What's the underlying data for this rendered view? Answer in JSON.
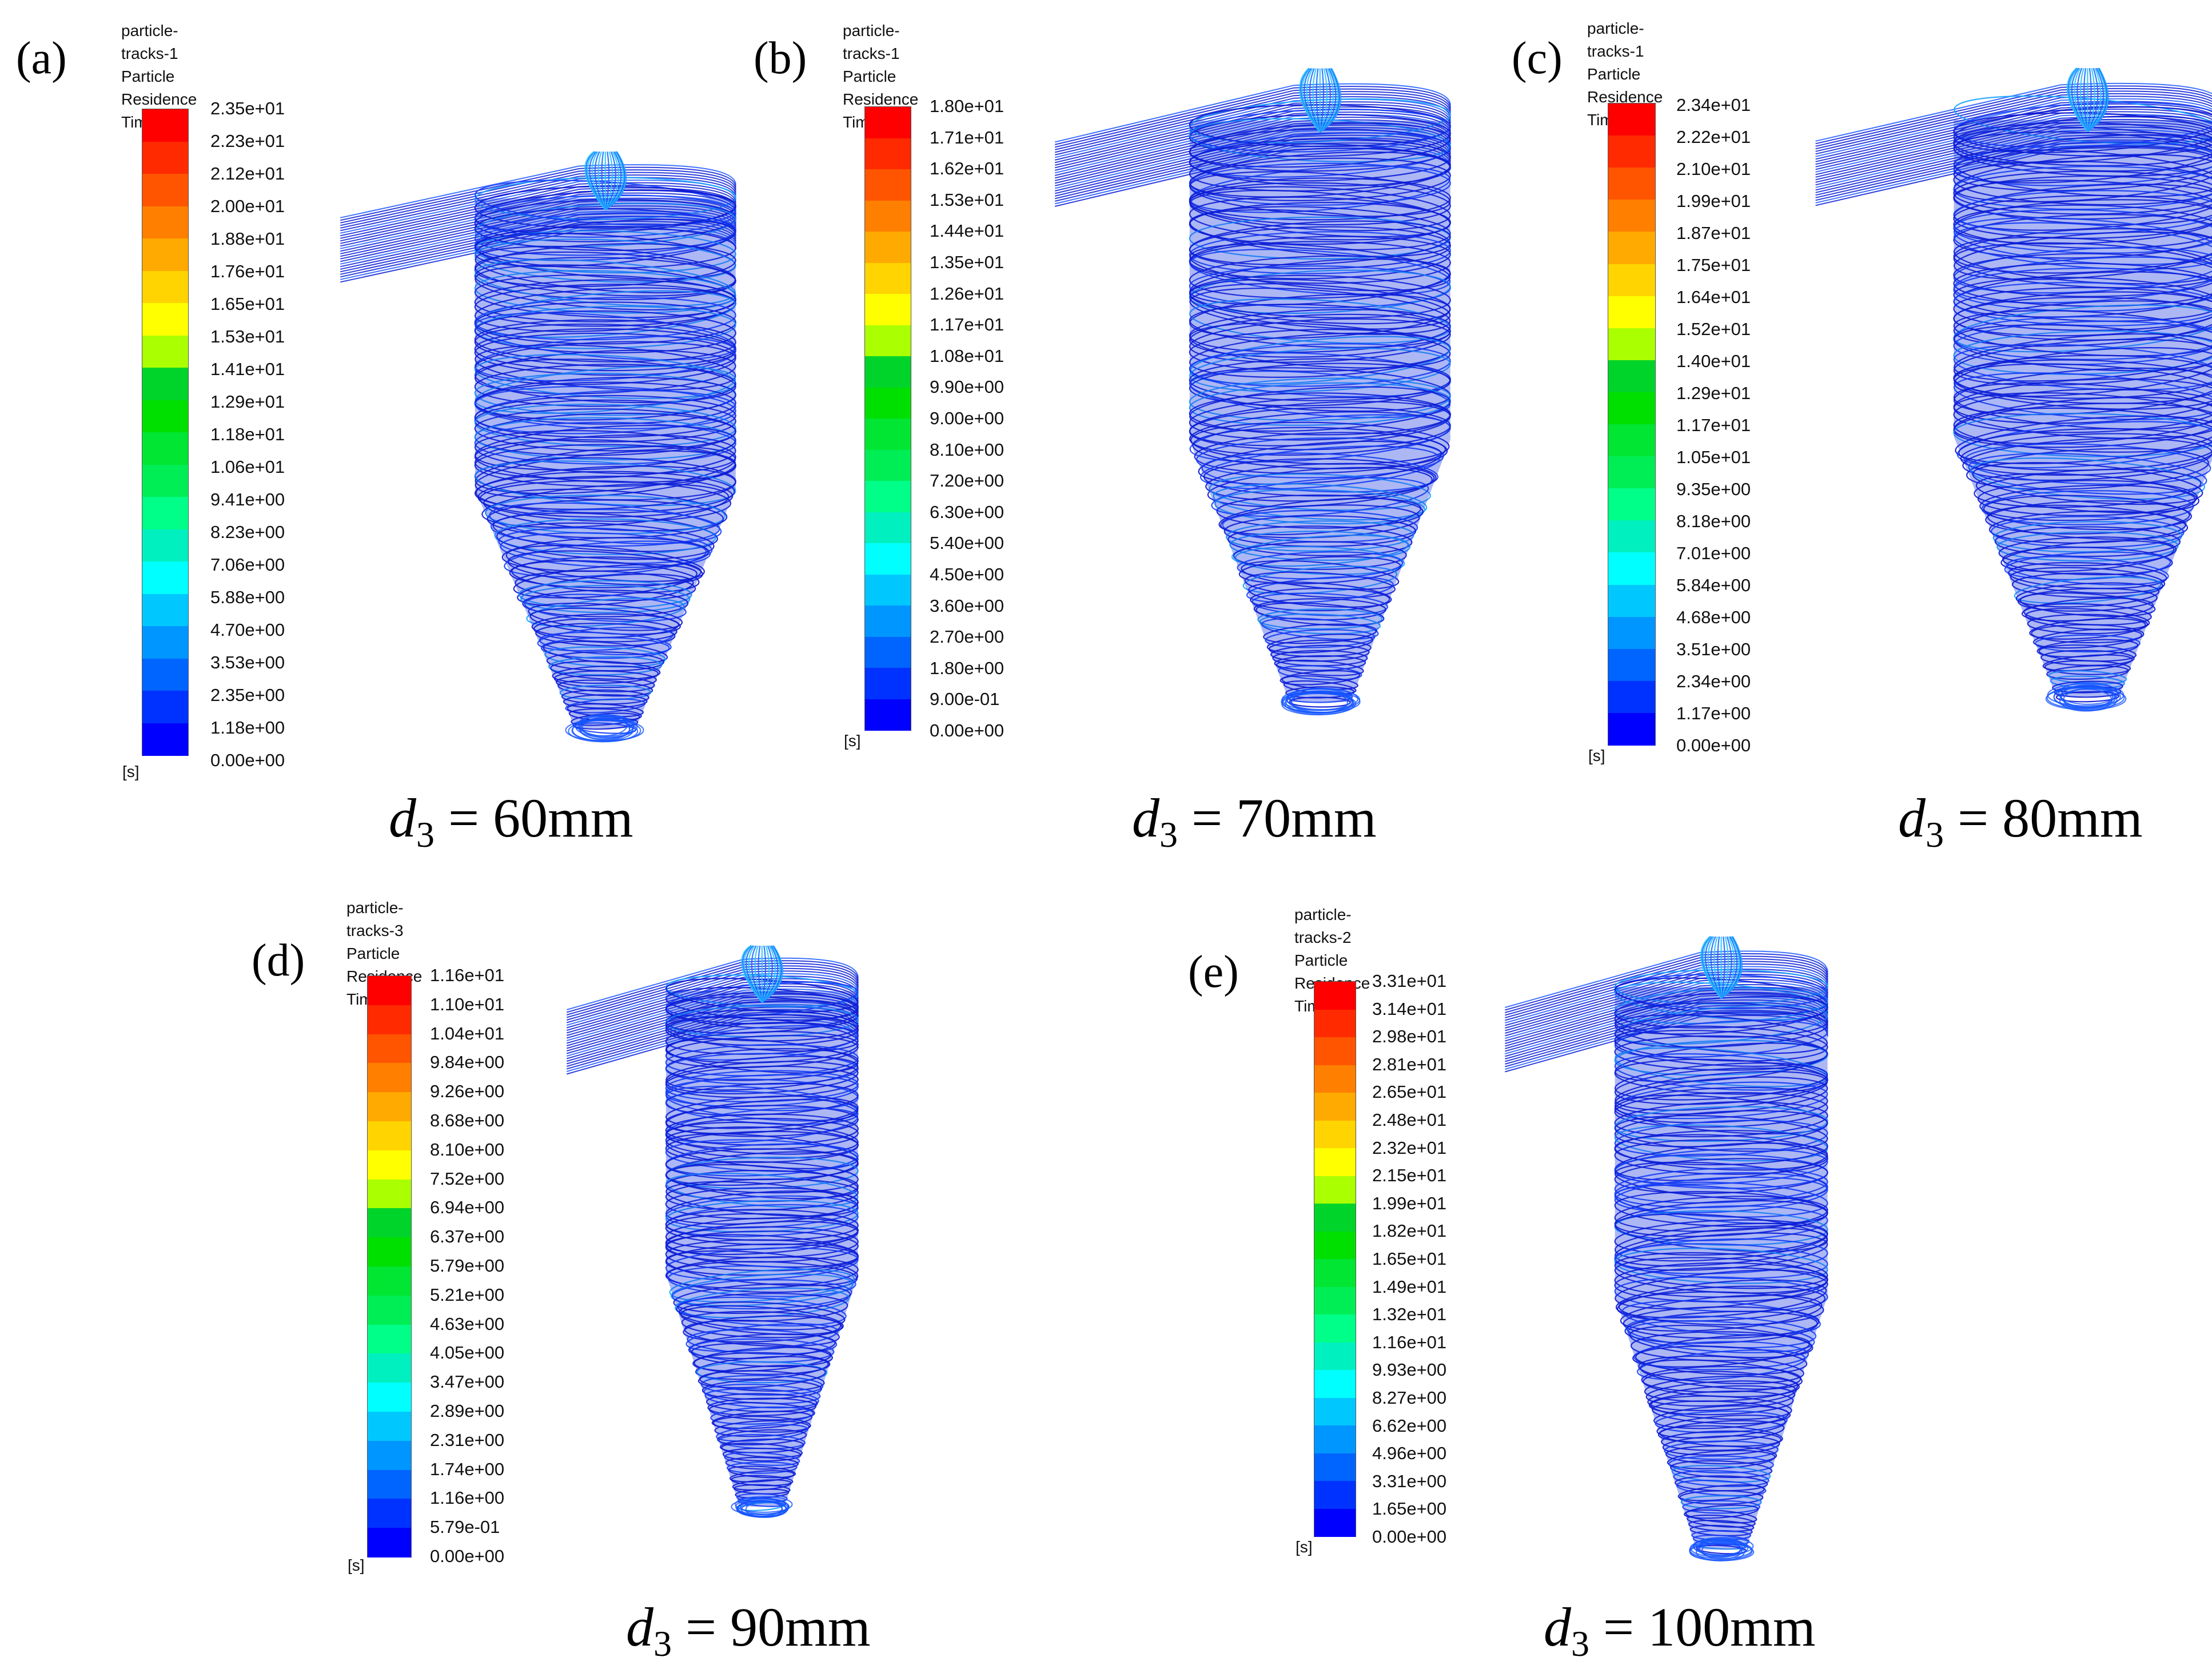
{
  "figure": {
    "panels": [
      {
        "id": "a",
        "letter": "(a)",
        "title_line1": "particle-tracks-1",
        "title_line2": "Particle Residence Time",
        "unit": "[s]",
        "caption_var": "d",
        "caption_sub": "3",
        "caption_value": " = 60mm",
        "legend_values": [
          "2.35e+01",
          "2.23e+01",
          "2.12e+01",
          "2.00e+01",
          "1.88e+01",
          "1.76e+01",
          "1.65e+01",
          "1.53e+01",
          "1.41e+01",
          "1.29e+01",
          "1.18e+01",
          "1.06e+01",
          "9.41e+00",
          "8.23e+00",
          "7.06e+00",
          "5.88e+00",
          "4.70e+00",
          "3.53e+00",
          "2.35e+00",
          "1.18e+00",
          "0.00e+00"
        ]
      },
      {
        "id": "b",
        "letter": "(b)",
        "title_line1": "particle-tracks-1",
        "title_line2": "Particle Residence Time",
        "unit": "[s]",
        "caption_var": "d",
        "caption_sub": "3",
        "caption_value": " = 70mm",
        "legend_values": [
          "1.80e+01",
          "1.71e+01",
          "1.62e+01",
          "1.53e+01",
          "1.44e+01",
          "1.35e+01",
          "1.26e+01",
          "1.17e+01",
          "1.08e+01",
          "9.90e+00",
          "9.00e+00",
          "8.10e+00",
          "7.20e+00",
          "6.30e+00",
          "5.40e+00",
          "4.50e+00",
          "3.60e+00",
          "2.70e+00",
          "1.80e+00",
          "9.00e-01",
          "0.00e+00"
        ]
      },
      {
        "id": "c",
        "letter": "(c)",
        "title_line1": "particle-tracks-1",
        "title_line2": "Particle Residence Time",
        "unit": "[s]",
        "caption_var": "d",
        "caption_sub": "3",
        "caption_value": " = 80mm",
        "legend_values": [
          "2.34e+01",
          "2.22e+01",
          "2.10e+01",
          "1.99e+01",
          "1.87e+01",
          "1.75e+01",
          "1.64e+01",
          "1.52e+01",
          "1.40e+01",
          "1.29e+01",
          "1.17e+01",
          "1.05e+01",
          "9.35e+00",
          "8.18e+00",
          "7.01e+00",
          "5.84e+00",
          "4.68e+00",
          "3.51e+00",
          "2.34e+00",
          "1.17e+00",
          "0.00e+00"
        ]
      },
      {
        "id": "d",
        "letter": "(d)",
        "title_line1": "particle-tracks-3",
        "title_line2": "Particle Residence Time",
        "unit": "[s]",
        "caption_var": "d",
        "caption_sub": "3",
        "caption_value": " = 90mm",
        "legend_values": [
          "1.16e+01",
          "1.10e+01",
          "1.04e+01",
          "9.84e+00",
          "9.26e+00",
          "8.68e+00",
          "8.10e+00",
          "7.52e+00",
          "6.94e+00",
          "6.37e+00",
          "5.79e+00",
          "5.21e+00",
          "4.63e+00",
          "4.05e+00",
          "3.47e+00",
          "2.89e+00",
          "2.31e+00",
          "1.74e+00",
          "1.16e+00",
          "5.79e-01",
          "0.00e+00"
        ]
      },
      {
        "id": "e",
        "letter": "(e)",
        "title_line1": "particle-tracks-2",
        "title_line2": "Particle Residence Time",
        "unit": "[s]",
        "caption_var": "d",
        "caption_sub": "3",
        "caption_value": " = 100mm",
        "legend_values": [
          "3.31e+01",
          "3.14e+01",
          "2.98e+01",
          "2.81e+01",
          "2.65e+01",
          "2.48e+01",
          "2.32e+01",
          "2.15e+01",
          "1.99e+01",
          "1.82e+01",
          "1.65e+01",
          "1.49e+01",
          "1.32e+01",
          "1.16e+01",
          "9.93e+00",
          "8.27e+00",
          "6.62e+00",
          "4.96e+00",
          "3.31e+00",
          "1.65e+00",
          "0.00e+00"
        ]
      }
    ],
    "colormap": [
      "#ff0000",
      "#ff2a00",
      "#ff5500",
      "#ff7f00",
      "#ffaa00",
      "#ffd400",
      "#ffff00",
      "#aaff00",
      "#00d42a",
      "#00e000",
      "#00e633",
      "#00ee55",
      "#00ff88",
      "#00f0c0",
      "#00ffff",
      "#00c8ff",
      "#0096ff",
      "#0064ff",
      "#0032ff",
      "#0000ff"
    ]
  }
}
